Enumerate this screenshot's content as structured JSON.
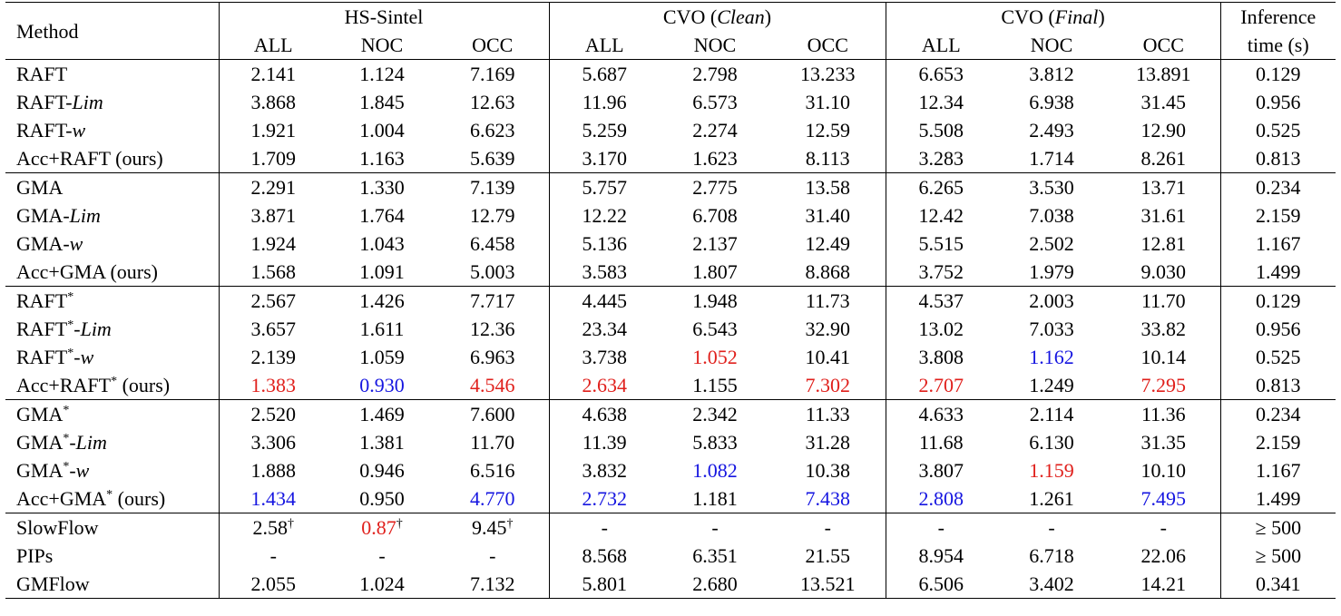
{
  "header": {
    "method": "Method",
    "groups": [
      {
        "name": "HS-Sintel",
        "suffix": ""
      },
      {
        "name": "CVO (",
        "italic": "Clean",
        "suffix": ")"
      },
      {
        "name": "CVO (",
        "italic": "Final",
        "suffix": ")"
      }
    ],
    "sub": [
      "ALL",
      "NOC",
      "OCC",
      "ALL",
      "NOC",
      "OCC",
      "ALL",
      "NOC",
      "OCC"
    ],
    "time_line1": "Inference",
    "time_line2": "time (s)"
  },
  "colors": {
    "best": "#e0201c",
    "second": "#1515e0"
  },
  "groups": [
    {
      "rows": [
        {
          "base": "RAFT",
          "star": false,
          "suffix": "",
          "ours": false,
          "vals": [
            [
              "2.141",
              ""
            ],
            [
              "1.124",
              ""
            ],
            [
              "7.169",
              ""
            ],
            [
              "5.687",
              ""
            ],
            [
              "2.798",
              ""
            ],
            [
              "13.233",
              ""
            ],
            [
              "6.653",
              ""
            ],
            [
              "3.812",
              ""
            ],
            [
              "13.891",
              ""
            ]
          ],
          "time": "0.129"
        },
        {
          "base": "RAFT-",
          "star": false,
          "suffix": "Lim",
          "ours": false,
          "vals": [
            [
              "3.868",
              ""
            ],
            [
              "1.845",
              ""
            ],
            [
              "12.63",
              ""
            ],
            [
              "11.96",
              ""
            ],
            [
              "6.573",
              ""
            ],
            [
              "31.10",
              ""
            ],
            [
              "12.34",
              ""
            ],
            [
              "6.938",
              ""
            ],
            [
              "31.45",
              ""
            ]
          ],
          "time": "0.956"
        },
        {
          "base": "RAFT-",
          "star": false,
          "suffix": "w",
          "ours": false,
          "vals": [
            [
              "1.921",
              ""
            ],
            [
              "1.004",
              ""
            ],
            [
              "6.623",
              ""
            ],
            [
              "5.259",
              ""
            ],
            [
              "2.274",
              ""
            ],
            [
              "12.59",
              ""
            ],
            [
              "5.508",
              ""
            ],
            [
              "2.493",
              ""
            ],
            [
              "12.90",
              ""
            ]
          ],
          "time": "0.525"
        },
        {
          "base": "Acc+RAFT",
          "star": false,
          "suffix": "",
          "ours": true,
          "vals": [
            [
              "1.709",
              ""
            ],
            [
              "1.163",
              ""
            ],
            [
              "5.639",
              ""
            ],
            [
              "3.170",
              ""
            ],
            [
              "1.623",
              ""
            ],
            [
              "8.113",
              ""
            ],
            [
              "3.283",
              ""
            ],
            [
              "1.714",
              ""
            ],
            [
              "8.261",
              ""
            ]
          ],
          "time": "0.813"
        }
      ]
    },
    {
      "rows": [
        {
          "base": "GMA",
          "star": false,
          "suffix": "",
          "ours": false,
          "vals": [
            [
              "2.291",
              ""
            ],
            [
              "1.330",
              ""
            ],
            [
              "7.139",
              ""
            ],
            [
              "5.757",
              ""
            ],
            [
              "2.775",
              ""
            ],
            [
              "13.58",
              ""
            ],
            [
              "6.265",
              ""
            ],
            [
              "3.530",
              ""
            ],
            [
              "13.71",
              ""
            ]
          ],
          "time": "0.234"
        },
        {
          "base": "GMA-",
          "star": false,
          "suffix": "Lim",
          "ours": false,
          "vals": [
            [
              "3.871",
              ""
            ],
            [
              "1.764",
              ""
            ],
            [
              "12.79",
              ""
            ],
            [
              "12.22",
              ""
            ],
            [
              "6.708",
              ""
            ],
            [
              "31.40",
              ""
            ],
            [
              "12.42",
              ""
            ],
            [
              "7.038",
              ""
            ],
            [
              "31.61",
              ""
            ]
          ],
          "time": "2.159"
        },
        {
          "base": "GMA-",
          "star": false,
          "suffix": "w",
          "ours": false,
          "vals": [
            [
              "1.924",
              ""
            ],
            [
              "1.043",
              ""
            ],
            [
              "6.458",
              ""
            ],
            [
              "5.136",
              ""
            ],
            [
              "2.137",
              ""
            ],
            [
              "12.49",
              ""
            ],
            [
              "5.515",
              ""
            ],
            [
              "2.502",
              ""
            ],
            [
              "12.81",
              ""
            ]
          ],
          "time": "1.167"
        },
        {
          "base": "Acc+GMA",
          "star": false,
          "suffix": "",
          "ours": true,
          "vals": [
            [
              "1.568",
              ""
            ],
            [
              "1.091",
              ""
            ],
            [
              "5.003",
              ""
            ],
            [
              "3.583",
              ""
            ],
            [
              "1.807",
              ""
            ],
            [
              "8.868",
              ""
            ],
            [
              "3.752",
              ""
            ],
            [
              "1.979",
              ""
            ],
            [
              "9.030",
              ""
            ]
          ],
          "time": "1.499"
        }
      ]
    },
    {
      "rows": [
        {
          "base": "RAFT",
          "star": true,
          "suffix": "",
          "ours": false,
          "vals": [
            [
              "2.567",
              ""
            ],
            [
              "1.426",
              ""
            ],
            [
              "7.717",
              ""
            ],
            [
              "4.445",
              ""
            ],
            [
              "1.948",
              ""
            ],
            [
              "11.73",
              ""
            ],
            [
              "4.537",
              ""
            ],
            [
              "2.003",
              ""
            ],
            [
              "11.70",
              ""
            ]
          ],
          "time": "0.129"
        },
        {
          "base": "RAFT",
          "star": true,
          "suffix": "Lim",
          "ours": false,
          "vals": [
            [
              "3.657",
              ""
            ],
            [
              "1.611",
              ""
            ],
            [
              "12.36",
              ""
            ],
            [
              "23.34",
              ""
            ],
            [
              "6.543",
              ""
            ],
            [
              "32.90",
              ""
            ],
            [
              "13.02",
              ""
            ],
            [
              "7.033",
              ""
            ],
            [
              "33.82",
              ""
            ]
          ],
          "time": "0.956"
        },
        {
          "base": "RAFT",
          "star": true,
          "suffix": "w",
          "ours": false,
          "vals": [
            [
              "2.139",
              ""
            ],
            [
              "1.059",
              ""
            ],
            [
              "6.963",
              ""
            ],
            [
              "3.738",
              ""
            ],
            [
              "1.052",
              "red"
            ],
            [
              "10.41",
              ""
            ],
            [
              "3.808",
              ""
            ],
            [
              "1.162",
              "blue"
            ],
            [
              "10.14",
              ""
            ]
          ],
          "time": "0.525"
        },
        {
          "base": "Acc+RAFT",
          "star": true,
          "suffix": "",
          "ours": true,
          "vals": [
            [
              "1.383",
              "red"
            ],
            [
              "0.930",
              "blue"
            ],
            [
              "4.546",
              "red"
            ],
            [
              "2.634",
              "red"
            ],
            [
              "1.155",
              ""
            ],
            [
              "7.302",
              "red"
            ],
            [
              "2.707",
              "red"
            ],
            [
              "1.249",
              ""
            ],
            [
              "7.295",
              "red"
            ]
          ],
          "time": "0.813"
        }
      ]
    },
    {
      "rows": [
        {
          "base": "GMA",
          "star": true,
          "suffix": "",
          "ours": false,
          "vals": [
            [
              "2.520",
              ""
            ],
            [
              "1.469",
              ""
            ],
            [
              "7.600",
              ""
            ],
            [
              "4.638",
              ""
            ],
            [
              "2.342",
              ""
            ],
            [
              "11.33",
              ""
            ],
            [
              "4.633",
              ""
            ],
            [
              "2.114",
              ""
            ],
            [
              "11.36",
              ""
            ]
          ],
          "time": "0.234"
        },
        {
          "base": "GMA",
          "star": true,
          "suffix": "Lim",
          "ours": false,
          "vals": [
            [
              "3.306",
              ""
            ],
            [
              "1.381",
              ""
            ],
            [
              "11.70",
              ""
            ],
            [
              "11.39",
              ""
            ],
            [
              "5.833",
              ""
            ],
            [
              "31.28",
              ""
            ],
            [
              "11.68",
              ""
            ],
            [
              "6.130",
              ""
            ],
            [
              "31.35",
              ""
            ]
          ],
          "time": "2.159"
        },
        {
          "base": "GMA",
          "star": true,
          "suffix": "w",
          "ours": false,
          "vals": [
            [
              "1.888",
              ""
            ],
            [
              "0.946",
              ""
            ],
            [
              "6.516",
              ""
            ],
            [
              "3.832",
              ""
            ],
            [
              "1.082",
              "blue"
            ],
            [
              "10.38",
              ""
            ],
            [
              "3.807",
              ""
            ],
            [
              "1.159",
              "red"
            ],
            [
              "10.10",
              ""
            ]
          ],
          "time": "1.167"
        },
        {
          "base": "Acc+GMA",
          "star": true,
          "suffix": "",
          "ours": true,
          "vals": [
            [
              "1.434",
              "blue"
            ],
            [
              "0.950",
              ""
            ],
            [
              "4.770",
              "blue"
            ],
            [
              "2.732",
              "blue"
            ],
            [
              "1.181",
              ""
            ],
            [
              "7.438",
              "blue"
            ],
            [
              "2.808",
              "blue"
            ],
            [
              "1.261",
              ""
            ],
            [
              "7.495",
              "blue"
            ]
          ],
          "time": "1.499"
        }
      ]
    },
    {
      "rows": [
        {
          "base": "SlowFlow",
          "star": false,
          "suffix": "",
          "ours": false,
          "vals": [
            [
              "2.58",
              "",
              "†"
            ],
            [
              "0.87",
              "red",
              "†"
            ],
            [
              "9.45",
              "",
              "†"
            ],
            [
              "-",
              ""
            ],
            [
              "-",
              ""
            ],
            [
              "-",
              ""
            ],
            [
              "-",
              ""
            ],
            [
              "-",
              ""
            ],
            [
              "-",
              ""
            ]
          ],
          "time": "≥ 500"
        },
        {
          "base": "PIPs",
          "star": false,
          "suffix": "",
          "ours": false,
          "vals": [
            [
              "-",
              ""
            ],
            [
              "-",
              ""
            ],
            [
              "-",
              ""
            ],
            [
              "8.568",
              ""
            ],
            [
              "6.351",
              ""
            ],
            [
              "21.55",
              ""
            ],
            [
              "8.954",
              ""
            ],
            [
              "6.718",
              ""
            ],
            [
              "22.06",
              ""
            ]
          ],
          "time": "≥ 500"
        },
        {
          "base": "GMFlow",
          "star": false,
          "suffix": "",
          "ours": false,
          "vals": [
            [
              "2.055",
              ""
            ],
            [
              "1.024",
              ""
            ],
            [
              "7.132",
              ""
            ],
            [
              "5.801",
              ""
            ],
            [
              "2.680",
              ""
            ],
            [
              "13.521",
              ""
            ],
            [
              "6.506",
              ""
            ],
            [
              "3.402",
              ""
            ],
            [
              "14.21",
              ""
            ]
          ],
          "time": "0.341"
        }
      ]
    }
  ],
  "labels": {
    "star": "*",
    "ours": " (ours)"
  }
}
